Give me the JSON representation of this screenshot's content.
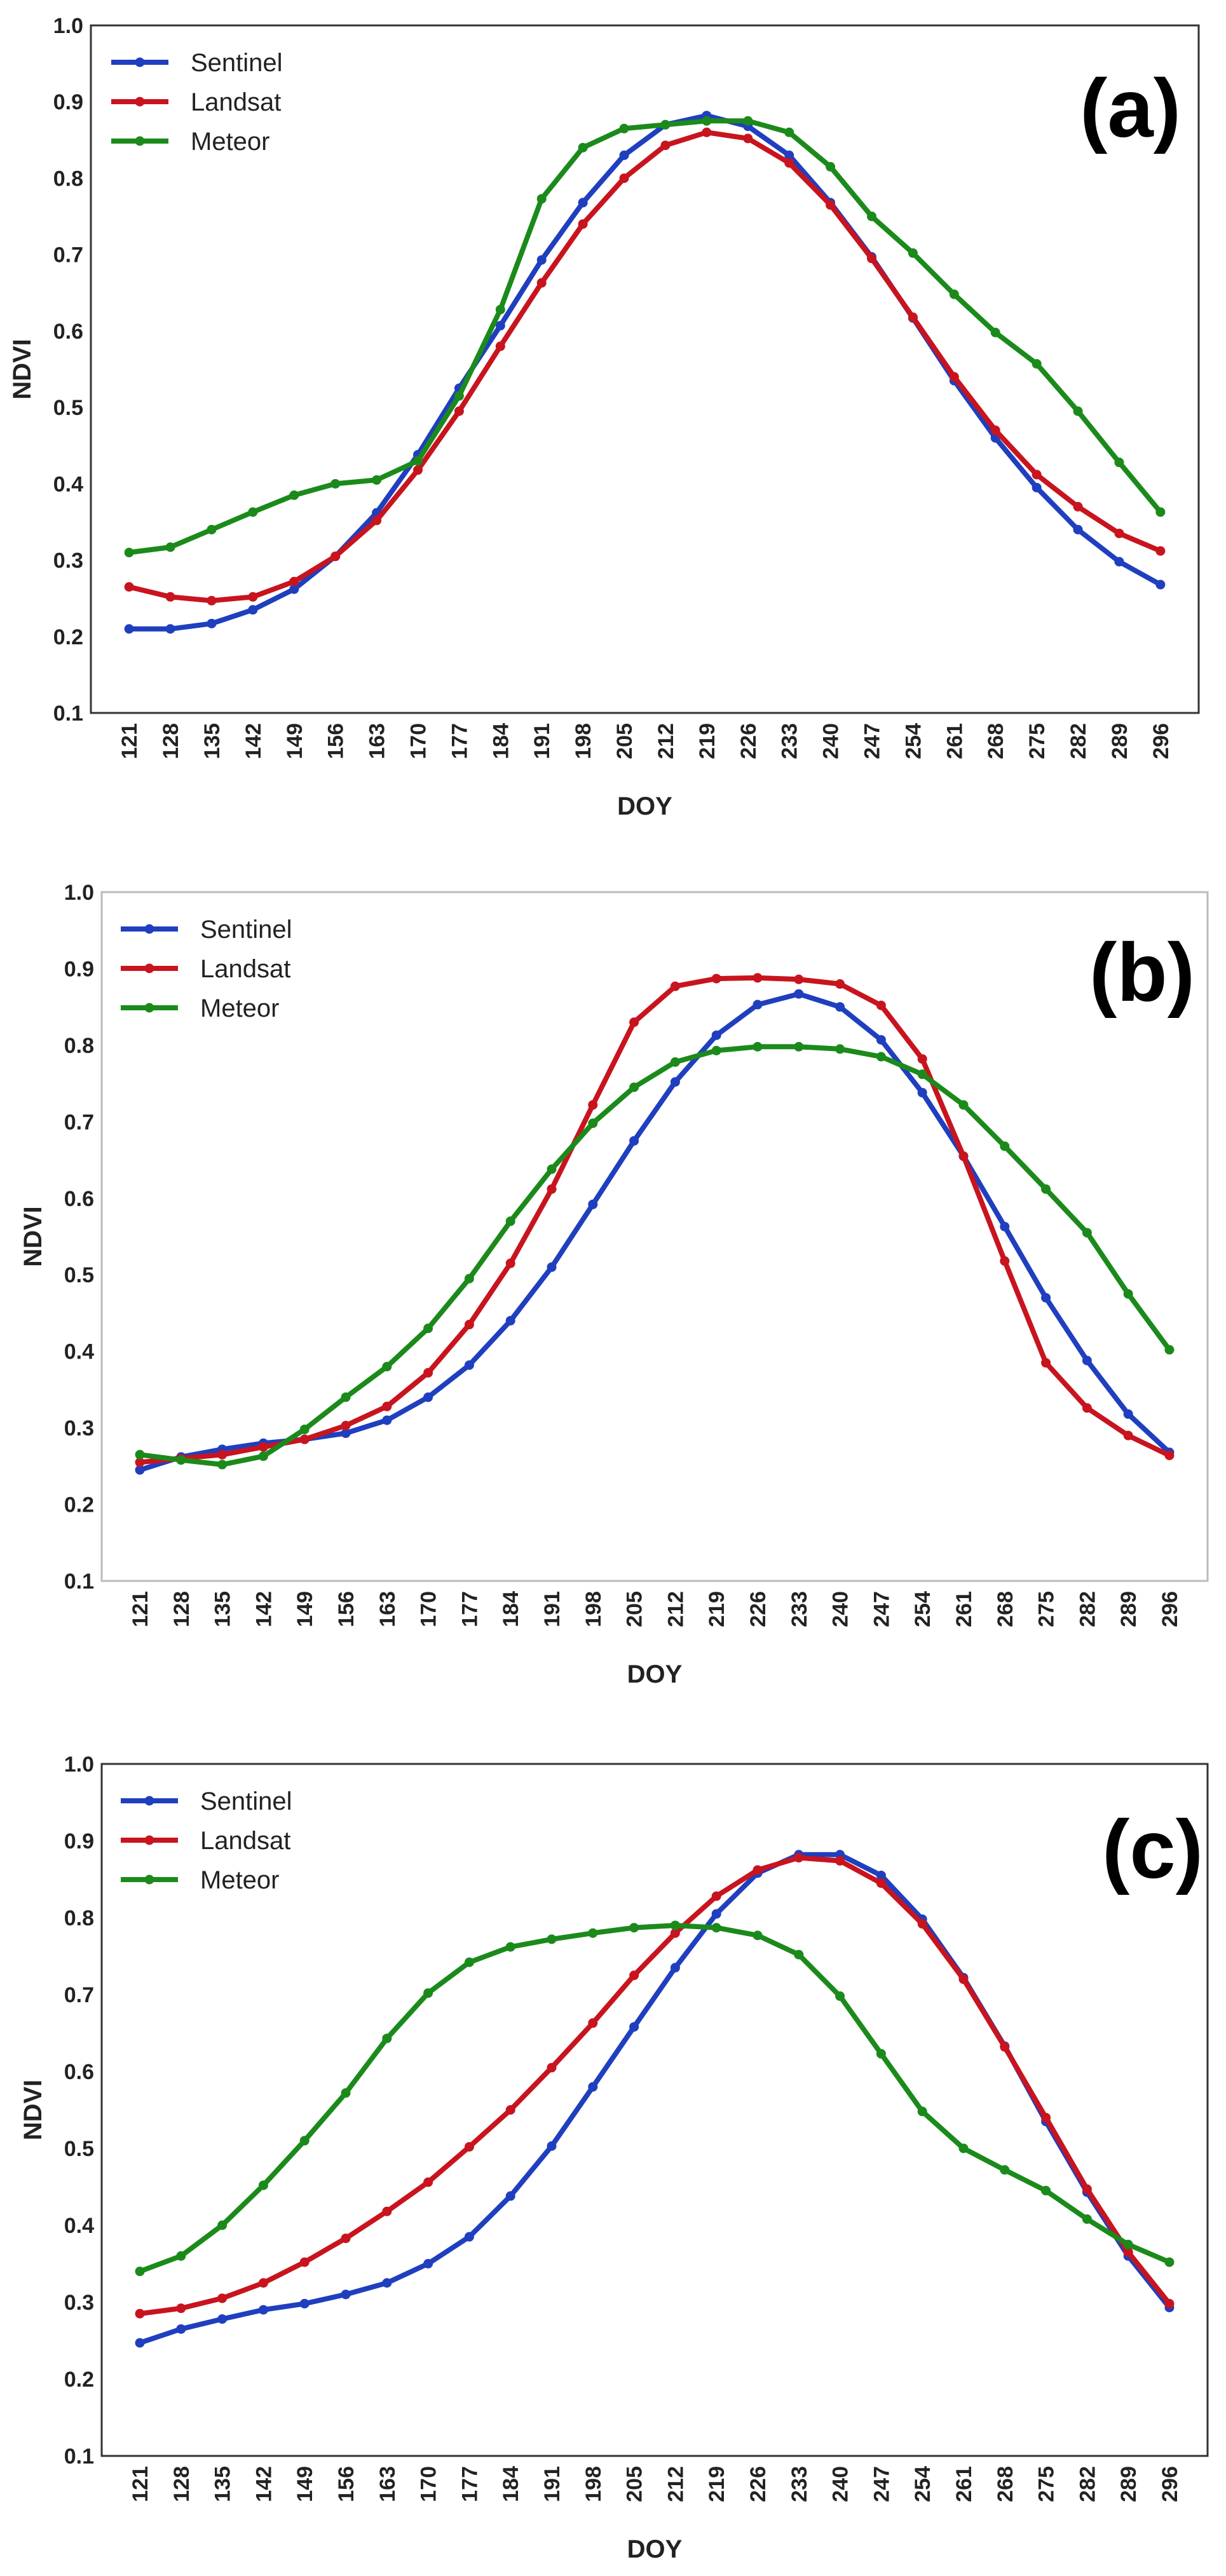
{
  "colors": {
    "Sentinel": "#1f3fbf",
    "Landsat": "#c8141e",
    "Meteor": "#1b8a1b"
  },
  "chart_data": [
    {
      "type": "line",
      "panel_label": "(a)",
      "xlabel": "DOY",
      "ylabel": "NDVI",
      "ylim": [
        0.1,
        1.0
      ],
      "yticks": [
        "0.1",
        "0.2",
        "0.3",
        "0.4",
        "0.5",
        "0.6",
        "0.7",
        "0.8",
        "0.9",
        "1.0"
      ],
      "grid": false,
      "legend_position": "top-left",
      "x": [
        "121",
        "128",
        "135",
        "142",
        "149",
        "156",
        "163",
        "170",
        "177",
        "184",
        "191",
        "198",
        "205",
        "212",
        "219",
        "226",
        "233",
        "240",
        "247",
        "254",
        "261",
        "268",
        "275",
        "282",
        "289",
        "296"
      ],
      "series": [
        {
          "name": "Sentinel",
          "values": [
            0.21,
            0.21,
            0.217,
            0.235,
            0.262,
            0.305,
            0.362,
            0.438,
            0.525,
            0.607,
            0.693,
            0.768,
            0.83,
            0.87,
            0.882,
            0.868,
            0.83,
            0.768,
            0.697,
            0.617,
            0.535,
            0.46,
            0.395,
            0.34,
            0.298,
            0.268
          ]
        },
        {
          "name": "Landsat",
          "values": [
            0.265,
            0.252,
            0.247,
            0.252,
            0.272,
            0.305,
            0.352,
            0.418,
            0.495,
            0.58,
            0.663,
            0.74,
            0.8,
            0.843,
            0.86,
            0.852,
            0.82,
            0.765,
            0.695,
            0.618,
            0.54,
            0.47,
            0.412,
            0.37,
            0.335,
            0.312
          ]
        },
        {
          "name": "Meteor",
          "values": [
            0.31,
            0.317,
            0.34,
            0.363,
            0.385,
            0.4,
            0.405,
            0.43,
            0.515,
            0.628,
            0.773,
            0.84,
            0.865,
            0.87,
            0.875,
            0.875,
            0.86,
            0.815,
            0.75,
            0.702,
            0.648,
            0.598,
            0.557,
            0.495,
            0.428,
            0.363
          ]
        }
      ]
    },
    {
      "type": "line",
      "panel_label": "(b)",
      "xlabel": "DOY",
      "ylabel": "NDVI",
      "ylim": [
        0.1,
        1.0
      ],
      "yticks": [
        "0.1",
        "0.2",
        "0.3",
        "0.4",
        "0.5",
        "0.6",
        "0.7",
        "0.8",
        "0.9",
        "1.0"
      ],
      "grid": false,
      "legend_position": "top-left",
      "x": [
        "121",
        "128",
        "135",
        "142",
        "149",
        "156",
        "163",
        "170",
        "177",
        "184",
        "191",
        "198",
        "205",
        "212",
        "219",
        "226",
        "233",
        "240",
        "247",
        "254",
        "261",
        "268",
        "275",
        "282",
        "289",
        "296"
      ],
      "series": [
        {
          "name": "Sentinel",
          "values": [
            0.245,
            0.262,
            0.272,
            0.28,
            0.285,
            0.293,
            0.31,
            0.34,
            0.382,
            0.44,
            0.51,
            0.592,
            0.675,
            0.752,
            0.813,
            0.853,
            0.867,
            0.85,
            0.807,
            0.738,
            0.655,
            0.563,
            0.47,
            0.388,
            0.318,
            0.268
          ]
        },
        {
          "name": "Landsat",
          "values": [
            0.255,
            0.26,
            0.265,
            0.275,
            0.285,
            0.303,
            0.328,
            0.372,
            0.435,
            0.515,
            0.612,
            0.722,
            0.83,
            0.877,
            0.887,
            0.888,
            0.886,
            0.88,
            0.852,
            0.782,
            0.655,
            0.518,
            0.385,
            0.326,
            0.29,
            0.264
          ]
        },
        {
          "name": "Meteor",
          "values": [
            0.265,
            0.258,
            0.252,
            0.263,
            0.298,
            0.34,
            0.38,
            0.43,
            0.495,
            0.57,
            0.638,
            0.698,
            0.745,
            0.778,
            0.793,
            0.798,
            0.798,
            0.795,
            0.785,
            0.762,
            0.722,
            0.668,
            0.612,
            0.555,
            0.475,
            0.402
          ]
        }
      ]
    },
    {
      "type": "line",
      "panel_label": "(c)",
      "xlabel": "DOY",
      "ylabel": "NDVI",
      "ylim": [
        0.1,
        1.0
      ],
      "yticks": [
        "0.1",
        "0.2",
        "0.3",
        "0.4",
        "0.5",
        "0.6",
        "0.7",
        "0.8",
        "0.9",
        "1.0"
      ],
      "grid": false,
      "legend_position": "top-left",
      "x": [
        "121",
        "128",
        "135",
        "142",
        "149",
        "156",
        "163",
        "170",
        "177",
        "184",
        "191",
        "198",
        "205",
        "212",
        "219",
        "226",
        "233",
        "240",
        "247",
        "254",
        "261",
        "268",
        "275",
        "282",
        "289",
        "296"
      ],
      "series": [
        {
          "name": "Sentinel",
          "values": [
            0.247,
            0.265,
            0.278,
            0.29,
            0.298,
            0.31,
            0.325,
            0.35,
            0.385,
            0.438,
            0.503,
            0.58,
            0.658,
            0.735,
            0.805,
            0.858,
            0.882,
            0.882,
            0.855,
            0.798,
            0.722,
            0.633,
            0.535,
            0.443,
            0.36,
            0.293
          ]
        },
        {
          "name": "Landsat",
          "values": [
            0.285,
            0.292,
            0.305,
            0.325,
            0.352,
            0.383,
            0.418,
            0.456,
            0.502,
            0.55,
            0.605,
            0.663,
            0.725,
            0.78,
            0.828,
            0.862,
            0.878,
            0.874,
            0.845,
            0.792,
            0.72,
            0.632,
            0.54,
            0.447,
            0.365,
            0.298
          ]
        },
        {
          "name": "Meteor",
          "values": [
            0.34,
            0.36,
            0.4,
            0.452,
            0.51,
            0.572,
            0.643,
            0.702,
            0.742,
            0.762,
            0.772,
            0.78,
            0.787,
            0.79,
            0.787,
            0.777,
            0.752,
            0.698,
            0.623,
            0.548,
            0.5,
            0.472,
            0.445,
            0.408,
            0.375,
            0.352
          ]
        }
      ]
    }
  ]
}
